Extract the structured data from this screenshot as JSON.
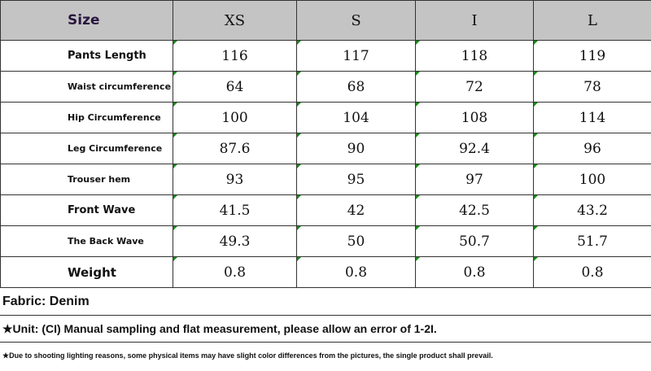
{
  "table": {
    "header": [
      "Size",
      "XS",
      "S",
      "I",
      "L"
    ],
    "rows": [
      {
        "label": "Pants Length",
        "values": [
          "116",
          "117",
          "118",
          "119"
        ]
      },
      {
        "label": "Waist circumference",
        "values": [
          "64",
          "68",
          "72",
          "78"
        ]
      },
      {
        "label": "Hip Circumference",
        "values": [
          "100",
          "104",
          "108",
          "114"
        ]
      },
      {
        "label": "Leg Circumference",
        "values": [
          "87.6",
          "90",
          "92.4",
          "96"
        ]
      },
      {
        "label": "Trouser hem",
        "values": [
          "93",
          "95",
          "97",
          "100"
        ]
      },
      {
        "label": "Front Wave",
        "values": [
          "41.5",
          "42",
          "42.5",
          "43.2"
        ]
      },
      {
        "label": "The Back Wave",
        "values": [
          "49.3",
          "50",
          "50.7",
          "51.7"
        ]
      },
      {
        "label": "Weight",
        "values": [
          "0.8",
          "0.8",
          "0.8",
          "0.8"
        ]
      }
    ]
  },
  "notes": {
    "fabric": "Fabric: Denim",
    "unit": "★Unit: (CI) Manual sampling and flat measurement, please allow an error of 1-2I.",
    "disclaimer": "★Due to shooting lighting reasons, some physical items may have slight color differences from the pictures, the single product shall prevail."
  },
  "colors": {
    "header_bg": "#c4c4c4",
    "corner_mark": "#1a8a1a",
    "size_label": "#2a1640"
  }
}
